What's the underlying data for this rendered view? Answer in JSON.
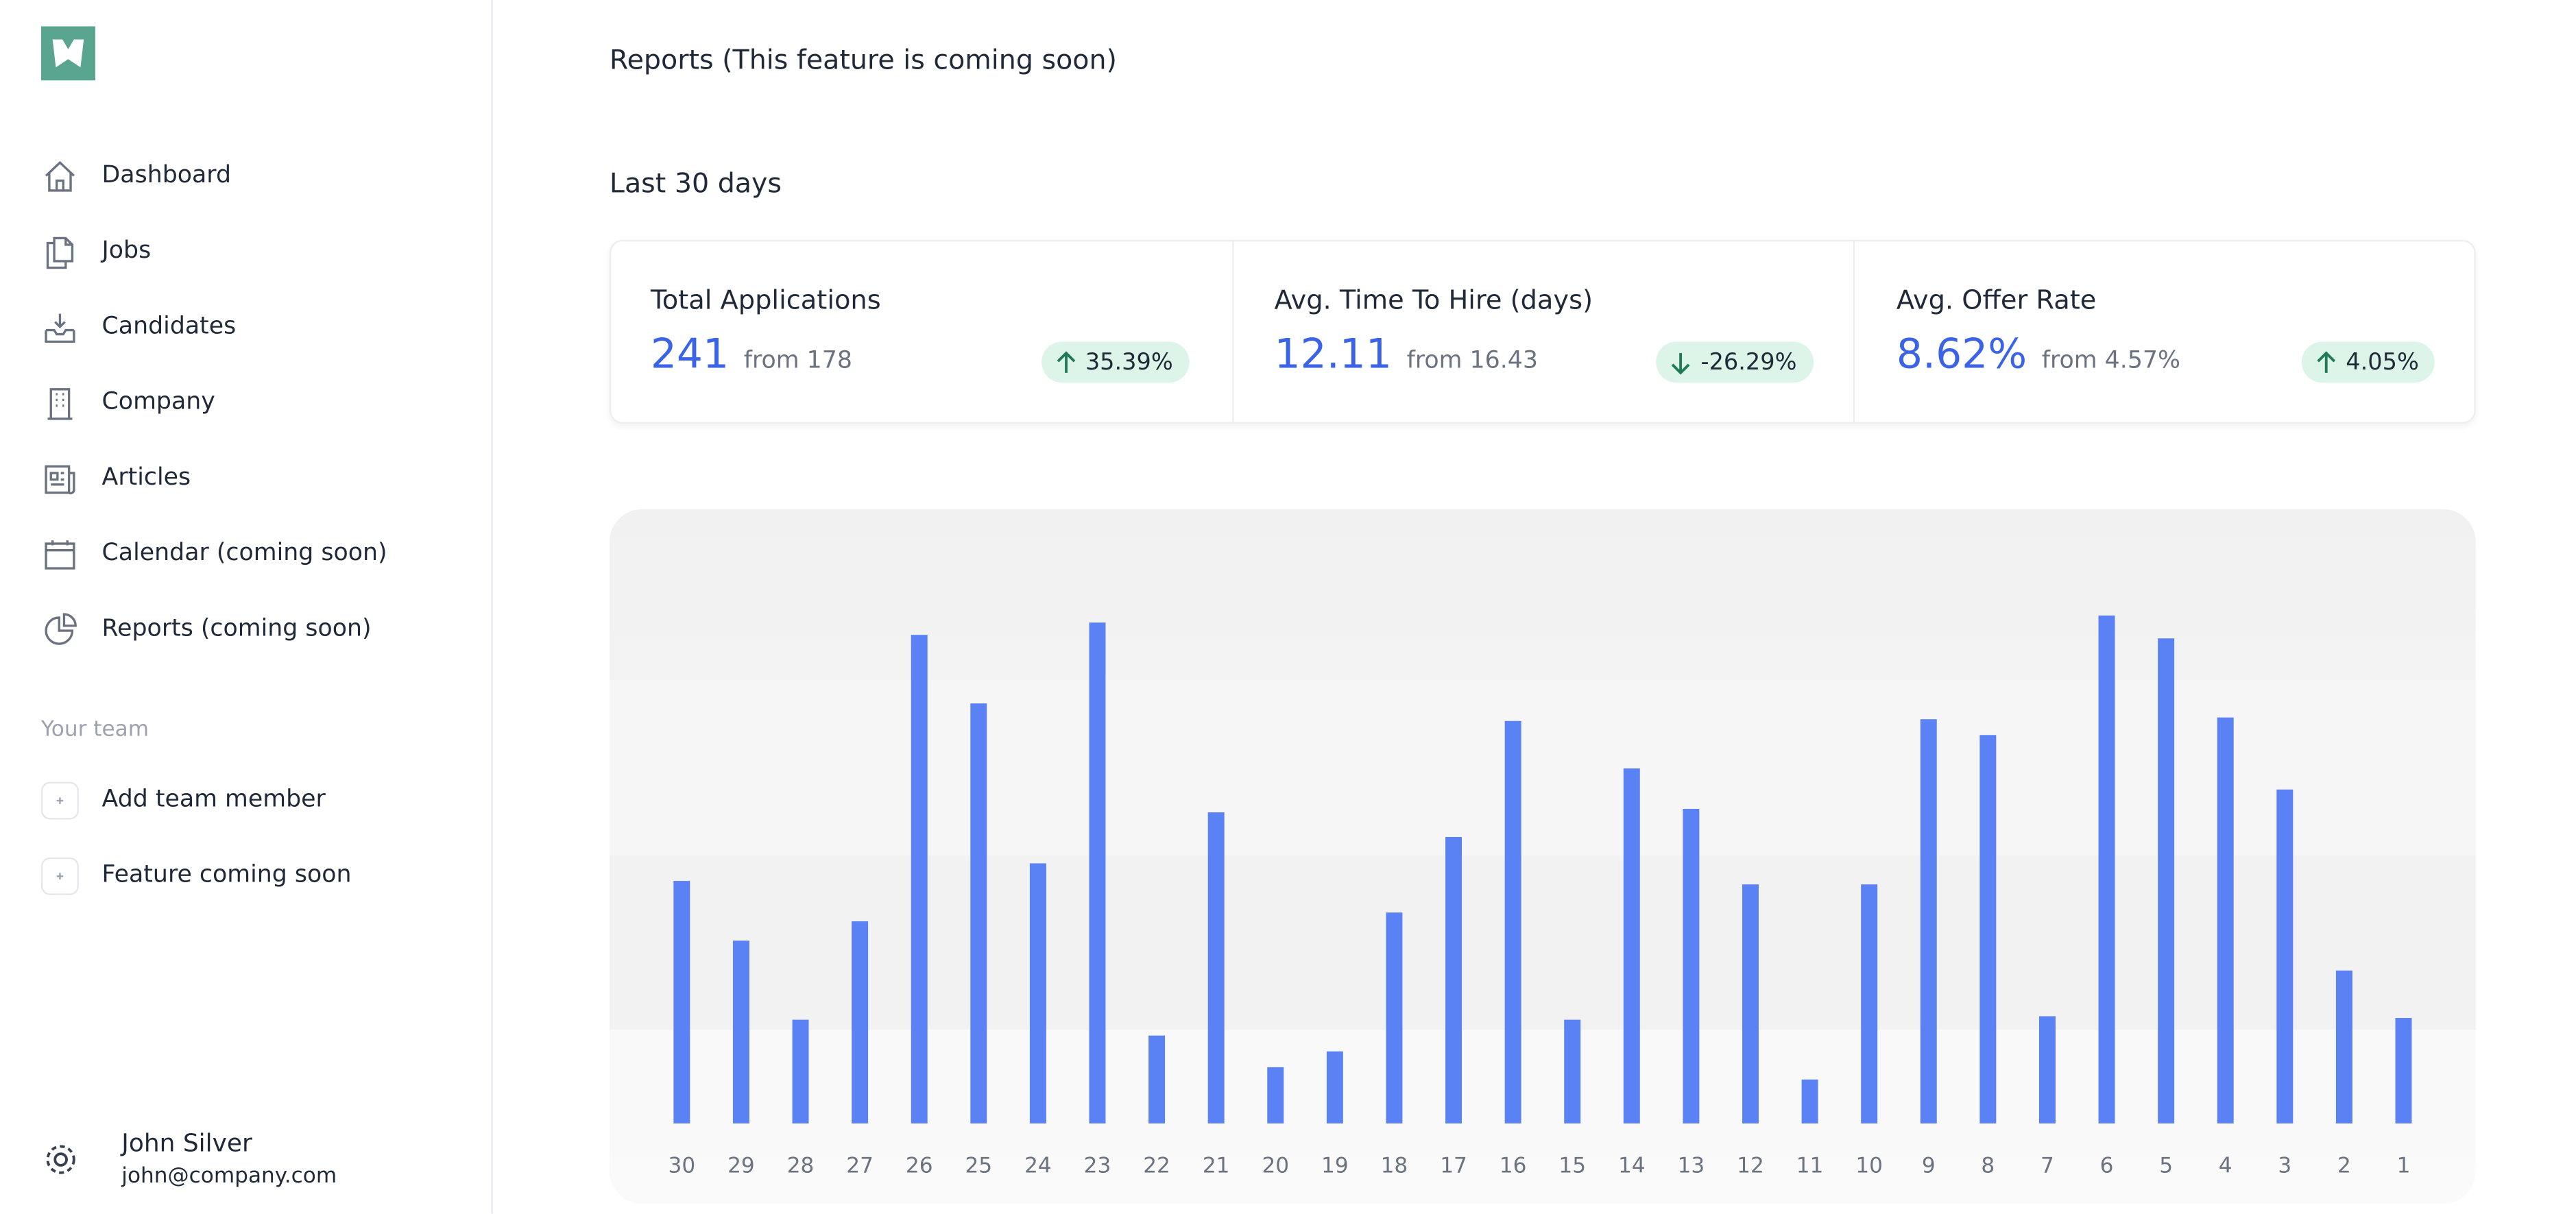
{
  "sidebar": {
    "nav": [
      "Dashboard",
      "Jobs",
      "Candidates",
      "Company",
      "Articles",
      "Calendar (coming soon)",
      "Reports (coming soon)"
    ],
    "team_heading": "Your team",
    "team": [
      "Add team member",
      "Feature coming soon"
    ],
    "user": {
      "name": "John Silver",
      "email": "john@company.com"
    }
  },
  "header": {
    "title": "Reports (This feature is coming soon)",
    "period": "Last 30 days"
  },
  "stats": [
    {
      "title": "Total Applications",
      "value": "241",
      "from": "from 178",
      "change": "35.39%",
      "trend": "up"
    },
    {
      "title": "Avg. Time To Hire (days)",
      "value": "12.11",
      "from": "from 16.43",
      "change": "-26.29%",
      "trend": "down"
    },
    {
      "title": "Avg. Offer Rate",
      "value": "8.62%",
      "from": "from 4.57%",
      "change": "4.05%",
      "trend": "up"
    }
  ],
  "chart_data": {
    "type": "bar",
    "color": "#5b82f5",
    "categories": [
      "30",
      "29",
      "28",
      "27",
      "26",
      "25",
      "24",
      "23",
      "22",
      "21",
      "20",
      "19",
      "18",
      "17",
      "16",
      "15",
      "14",
      "13",
      "12",
      "11",
      "10",
      "9",
      "8",
      "7",
      "6",
      "5",
      "4",
      "3",
      "2",
      "1"
    ],
    "values": [
      13.8,
      10.4,
      5.9,
      11.5,
      27.8,
      23.9,
      14.8,
      28.5,
      5.0,
      17.7,
      3.2,
      4.1,
      12.0,
      16.3,
      22.9,
      5.9,
      20.2,
      17.9,
      13.6,
      2.5,
      13.6,
      23.0,
      22.1,
      6.1,
      28.9,
      27.6,
      23.1,
      19.0,
      8.7,
      6.0
    ],
    "ylim": [
      0,
      35
    ]
  }
}
